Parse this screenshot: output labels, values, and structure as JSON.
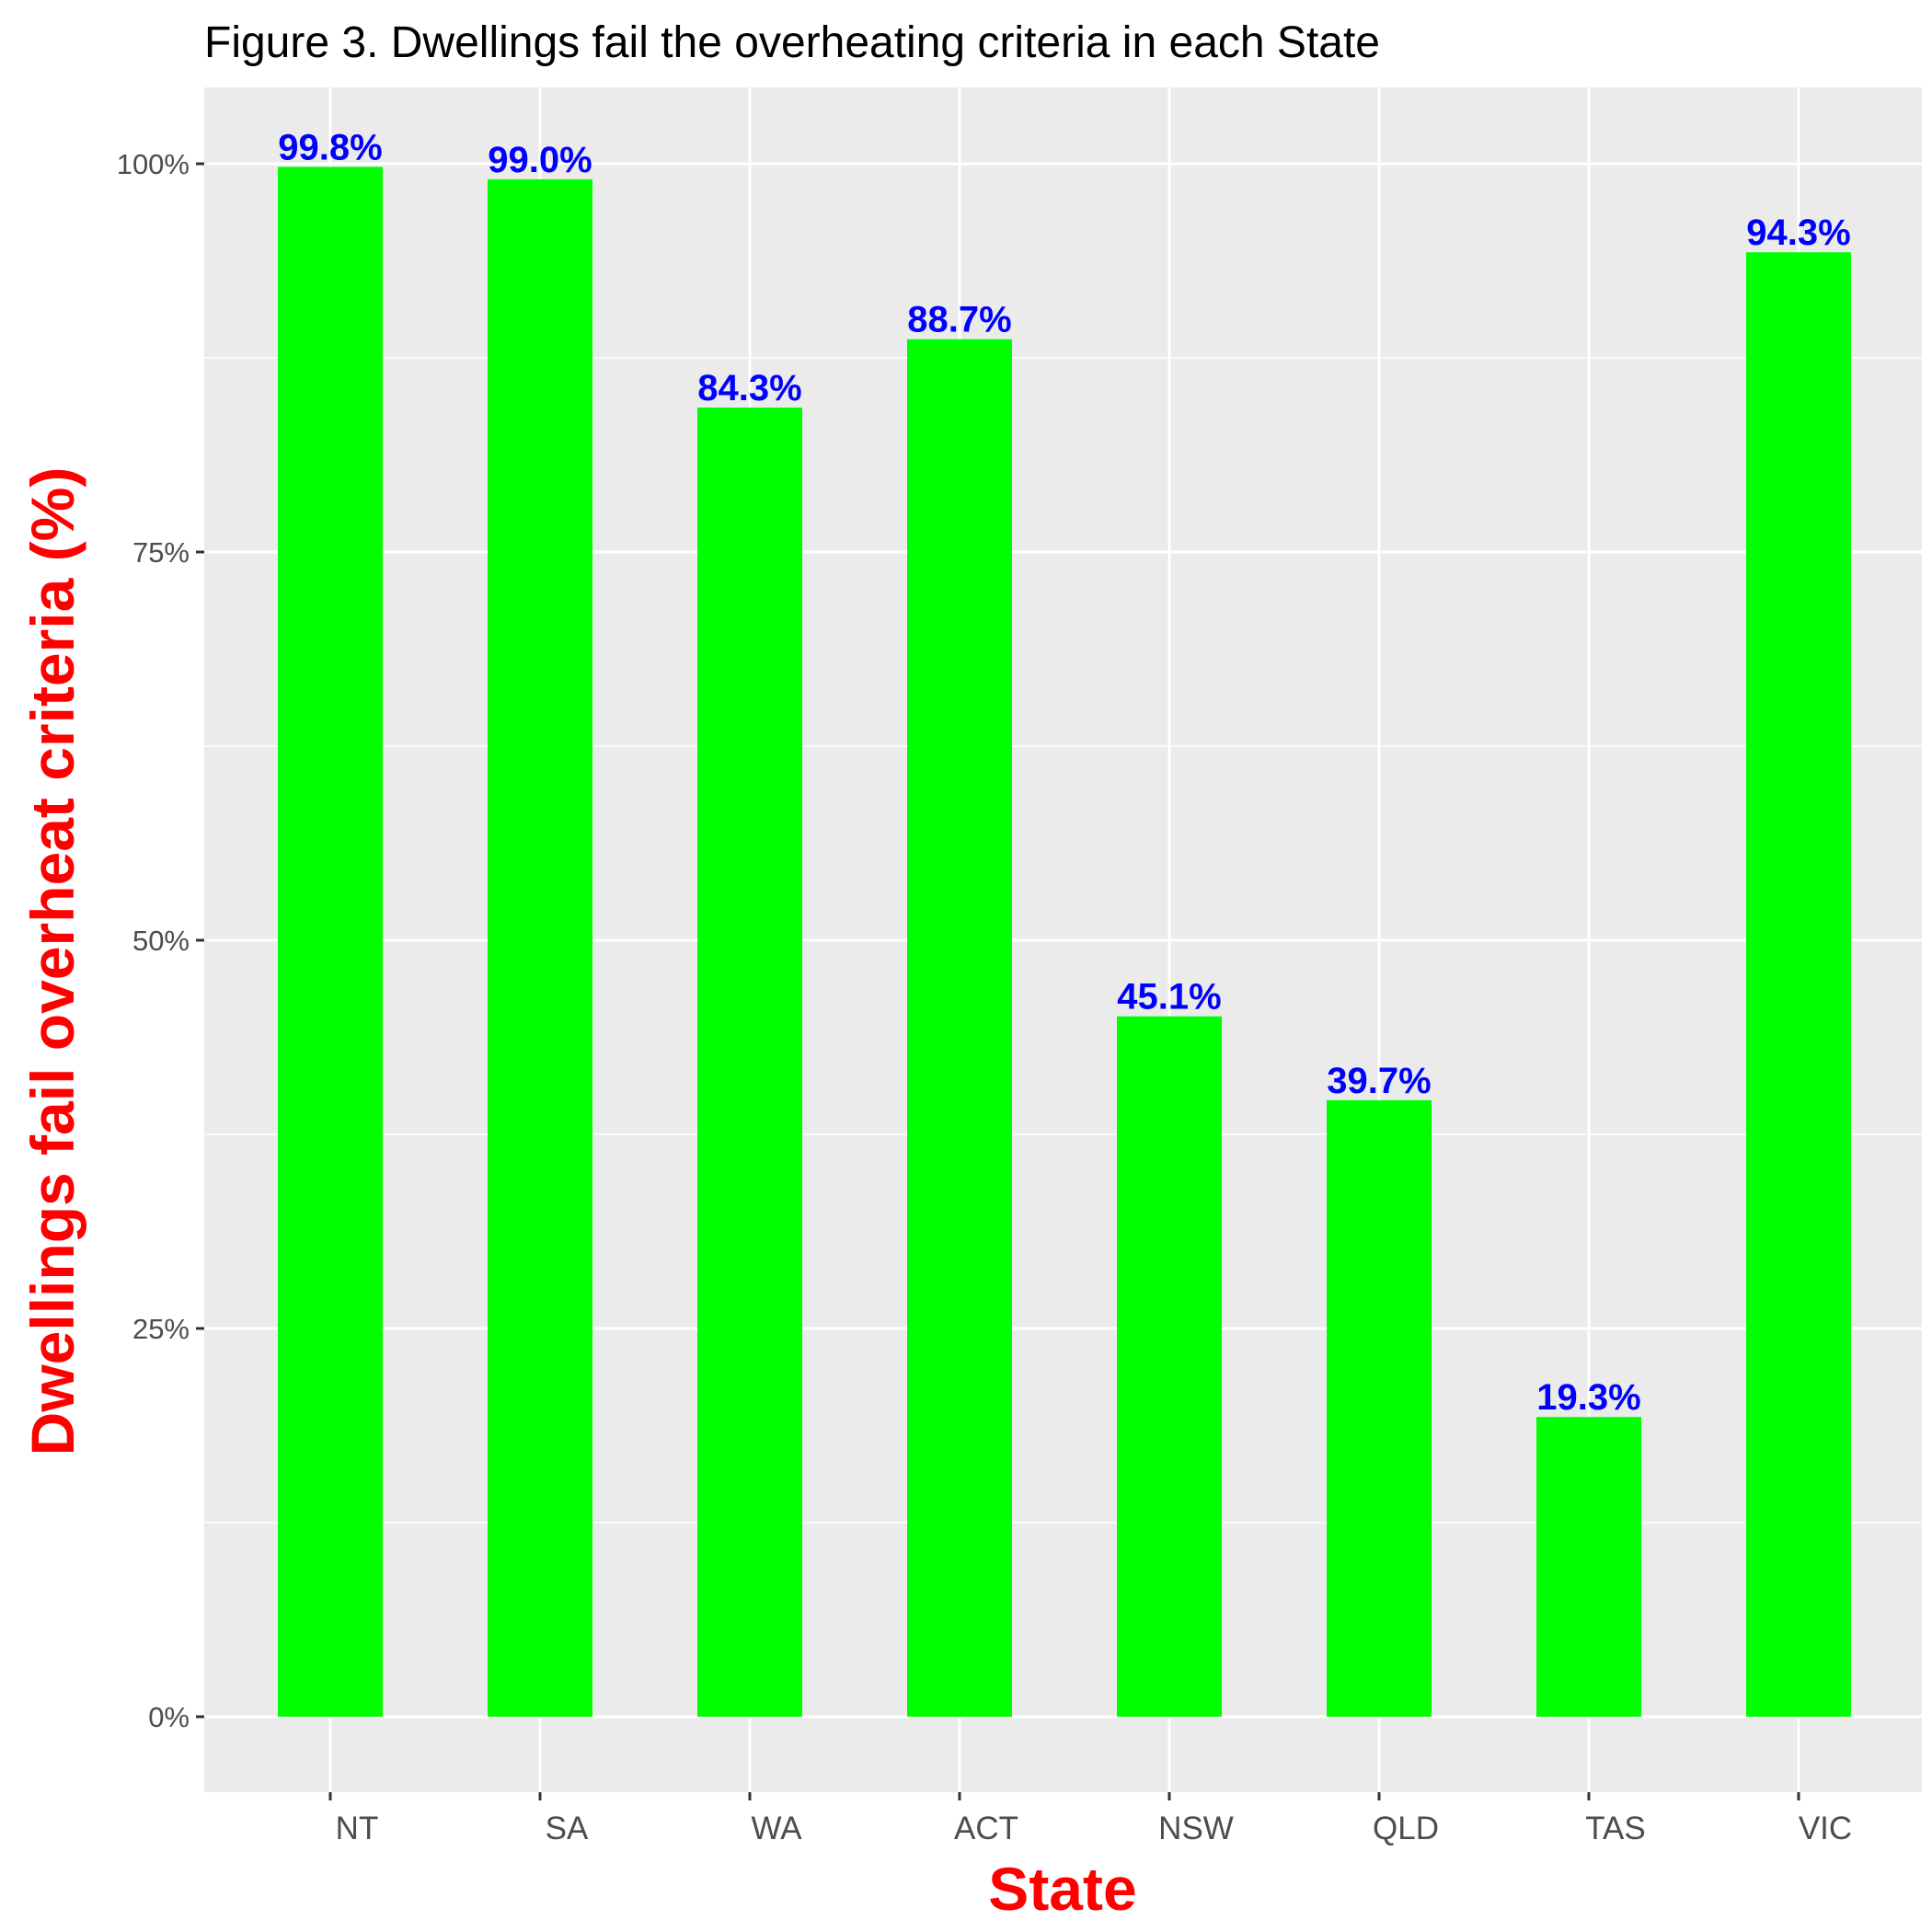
{
  "chart_data": {
    "type": "bar",
    "title": "Figure 3. Dwellings fail the overheating criteria in each State",
    "xlabel": "State",
    "ylabel": "Dwellings fail overheat criteria (%)",
    "categories": [
      "NT",
      "SA",
      "WA",
      "ACT",
      "NSW",
      "QLD",
      "TAS",
      "VIC"
    ],
    "values": [
      99.8,
      99.0,
      84.3,
      88.7,
      45.1,
      39.7,
      19.3,
      94.3
    ],
    "value_labels": [
      "99.8%",
      "99.0%",
      "84.3%",
      "88.7%",
      "45.1%",
      "39.7%",
      "19.3%",
      "94.3%"
    ],
    "yticks": [
      0,
      25,
      50,
      75,
      100
    ],
    "ytick_labels": [
      "0%",
      "25%",
      "50%",
      "75%",
      "100%"
    ],
    "ylim": [
      -5,
      105
    ],
    "grid": true,
    "legend": "none",
    "colors": {
      "bar": "#00ff00",
      "bar_label": "#0000ff",
      "axis_title": "#ff0000",
      "panel": "#ebebeb",
      "grid": "#ffffff"
    }
  }
}
